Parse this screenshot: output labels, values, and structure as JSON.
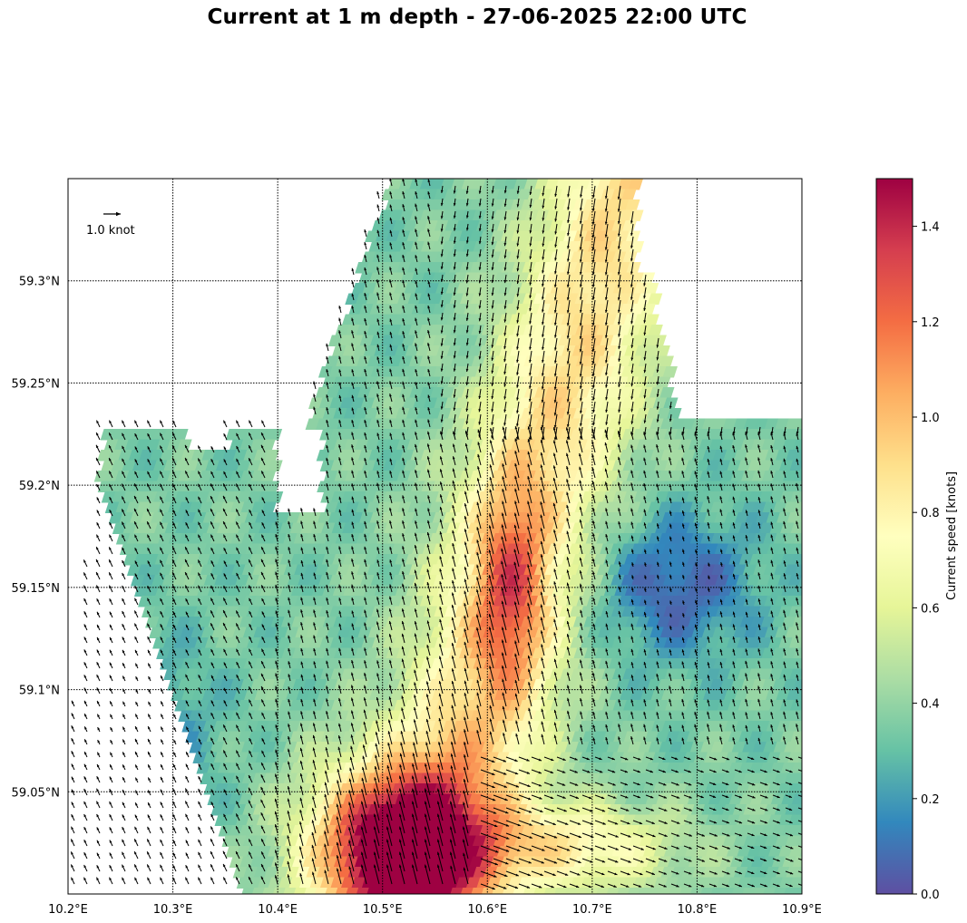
{
  "title": "Current at 1 m depth - 27-06-2025 22:00 UTC",
  "reference_arrow_label": "1.0 knot",
  "colorbar_label": "Current speed [knots]",
  "colormap": [
    "#5e4fa2",
    "#3288bd",
    "#66c2a5",
    "#abdda4",
    "#e6f598",
    "#ffffbf",
    "#fee08b",
    "#fdae61",
    "#f46d43",
    "#d53e4f",
    "#9e0142"
  ],
  "chart_data": {
    "type": "heatmap",
    "title": "Current at 1 m depth - 27-06-2025 22:00 UTC",
    "x_range": [
      10.2,
      10.9
    ],
    "y_range": [
      59.0,
      59.35
    ],
    "x_tick_values": [
      10.2,
      10.3,
      10.4,
      10.5,
      10.6,
      10.7,
      10.8,
      10.9
    ],
    "x_tick_labels": [
      "10.2°E",
      "10.3°E",
      "10.4°E",
      "10.5°E",
      "10.6°E",
      "10.7°E",
      "10.8°E",
      "10.9°E"
    ],
    "y_tick_values": [
      59.05,
      59.1,
      59.15,
      59.2,
      59.25,
      59.3
    ],
    "y_tick_labels": [
      "59.05°N",
      "59.1°N",
      "59.15°N",
      "59.2°N",
      "59.25°N",
      "59.3°N"
    ],
    "grid": true,
    "colorbar": {
      "range": [
        0.0,
        1.5
      ],
      "tick_values": [
        0.0,
        0.2,
        0.4,
        0.6,
        0.8,
        1.0,
        1.2,
        1.4
      ],
      "tick_labels": [
        "0.0",
        "0.2",
        "0.4",
        "0.6",
        "0.8",
        "1.0",
        "1.2",
        "1.4"
      ],
      "label": "Current speed [knots]"
    },
    "reference_arrow": "1.0 knot"
  }
}
